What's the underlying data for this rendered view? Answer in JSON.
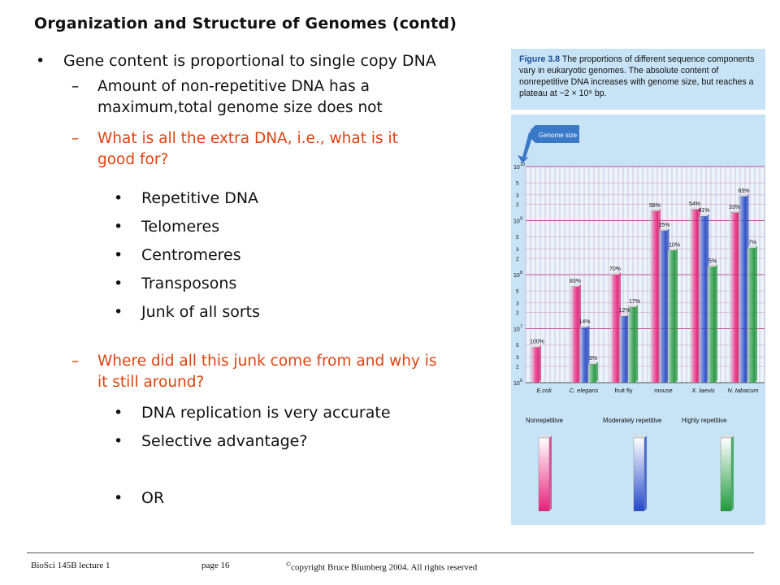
{
  "title": "Organization and Structure of Genomes (contd)",
  "bullet_glyph": "•",
  "dash_glyph": "–",
  "main_bullet": "Gene content is proportional to single copy DNA",
  "sub1": {
    "line1": "Amount of non-repetitive DNA has a",
    "line2": "maximum,total genome size does not"
  },
  "sub2": {
    "line1": "What is all the extra DNA, i.e., what is it",
    "line2": "good for?"
  },
  "items_a": [
    "Repetitive DNA",
    "Telomeres",
    "Centromeres",
    "Transposons",
    "Junk of all sorts"
  ],
  "sub3": {
    "line1": "Where did all this junk come from and why is",
    "line2": "it still around?"
  },
  "items_b": [
    "DNA replication is very accurate",
    "Selective advantage?",
    "OR"
  ],
  "caption": {
    "label": "Figure 3.8",
    "text": "The proportions of different sequence components vary in eukaryotic genomes. The absolute content of nonrepetitive DNA increases with genome size, but reaches a plateau at ~2 × 10⁹ bp."
  },
  "chart_data": {
    "type": "bar",
    "scale": "log10",
    "ylim": [
      1000000,
      10000000000
    ],
    "yticks": [
      {
        "exp": 10,
        "minor": [
          "5",
          "3",
          "2"
        ]
      },
      {
        "exp": 9,
        "minor": [
          "5",
          "3",
          "2"
        ]
      },
      {
        "exp": 8,
        "minor": [
          "5",
          "3",
          "2"
        ]
      },
      {
        "exp": 7,
        "minor": [
          "5",
          "3",
          "2"
        ]
      },
      {
        "exp": 6,
        "minor": [
          "5",
          "3",
          "2"
        ]
      }
    ],
    "categories": [
      "E.coli",
      "C. elegans",
      "fruit fly",
      "mouse",
      "X. laevis",
      "N. tabacum"
    ],
    "italic_categories": [
      "E.coli",
      "C. elegans",
      "X. laevis",
      "N. tabacum"
    ],
    "series": [
      {
        "name": "Nonrepetitive",
        "color": "#e8207a",
        "values": [
          4500000,
          60000000,
          100000000,
          1500000000,
          1600000000,
          1400000000
        ],
        "labels": [
          "100%",
          "83%",
          "70%",
          "58%",
          "54%",
          "33%"
        ]
      },
      {
        "name": "Moderately repetitive",
        "color": "#2448c8",
        "values": [
          null,
          10500000,
          17000000,
          650000000,
          1200000000,
          2800000000
        ],
        "labels": [
          "",
          "14%",
          "12%",
          "25%",
          "41%",
          "65%"
        ]
      },
      {
        "name": "Highly repetitive",
        "color": "#1e9a3a",
        "values": [
          null,
          2200000,
          25000000,
          280000000,
          140000000,
          310000000
        ],
        "labels": [
          "",
          "3%",
          "17%",
          "10%",
          "5%",
          "7%"
        ]
      }
    ],
    "annotation": "Genome size",
    "legend_placement": "bottom"
  },
  "footer": {
    "course": "BioSci 145B lecture 1",
    "page": "page 16",
    "copyright_symbol": "©",
    "copyright": "copyright Bruce Blumberg 2004. All rights reserved"
  }
}
